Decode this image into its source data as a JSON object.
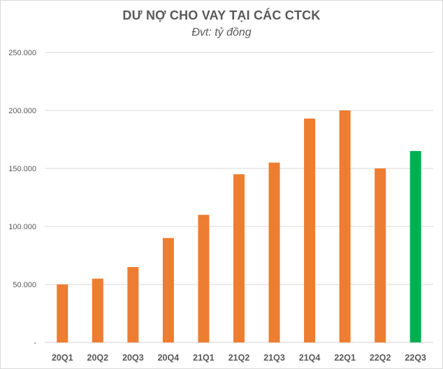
{
  "chart_data": {
    "type": "bar",
    "title": "DƯ NỢ CHO VAY TẠI CÁC CTCK",
    "subtitle": "Đvt: tỷ đồng",
    "xlabel": "",
    "ylabel": "",
    "categories": [
      "20Q1",
      "20Q2",
      "20Q3",
      "20Q4",
      "21Q1",
      "21Q2",
      "21Q3",
      "21Q4",
      "22Q1",
      "22Q2",
      "22Q3"
    ],
    "values": [
      50000,
      55000,
      65000,
      90000,
      110000,
      145000,
      155000,
      193000,
      200000,
      150000,
      165000
    ],
    "bar_colors": [
      "#ed7d31",
      "#ed7d31",
      "#ed7d31",
      "#ed7d31",
      "#ed7d31",
      "#ed7d31",
      "#ed7d31",
      "#ed7d31",
      "#ed7d31",
      "#ed7d31",
      "#00b050"
    ],
    "ylim": [
      0,
      250000
    ],
    "y_ticks": [
      0,
      50000,
      100000,
      150000,
      200000,
      250000
    ],
    "y_tick_labels": [
      "-",
      "50.000",
      "100.000",
      "150.000",
      "200.000",
      "250.000"
    ],
    "grid": true,
    "legend": "none"
  }
}
